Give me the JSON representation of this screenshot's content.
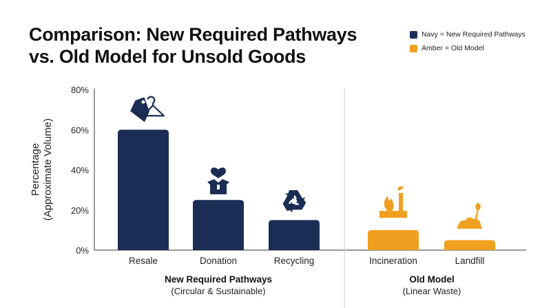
{
  "title_line1": "Comparison: New Required Pathways",
  "title_line2": "vs. Old Model for Unsold Goods",
  "legend": [
    {
      "label": "Navy = New Required Pathways",
      "color": "#1b2d54"
    },
    {
      "label": "Amber = Old Model",
      "color": "#f0a020"
    }
  ],
  "chart_data": {
    "type": "bar",
    "title": "Comparison: New Required Pathways vs. Old Model for Unsold Goods",
    "ylabel_line1": "Percentage",
    "ylabel_line2": "(Approximate Volume)",
    "ylim": [
      0,
      80
    ],
    "yticks": [
      "0%",
      "20%",
      "40%",
      "60%",
      "80%"
    ],
    "categories": [
      "Resale",
      "Donation",
      "Recycling",
      "Incineration",
      "Landfill"
    ],
    "values": [
      60,
      25,
      15,
      10,
      5
    ],
    "groups": [
      {
        "title": "New Required Pathways",
        "subtitle": "(Circular & Sustainable)",
        "color": "#1b2d54",
        "icon_color": "#1b2d54"
      },
      {
        "title": "Old Model",
        "subtitle": "(Linear Waste)",
        "color": "#f0a020",
        "icon_color": "#f0a020"
      }
    ],
    "group_of_category": [
      0,
      0,
      0,
      1,
      1
    ],
    "icons": [
      "price-tag-hanger-icon",
      "donation-box-heart-icon",
      "recycle-icon",
      "factory-fire-icon",
      "dirt-shovel-icon"
    ],
    "grid": false,
    "legend_position": "top-right"
  }
}
